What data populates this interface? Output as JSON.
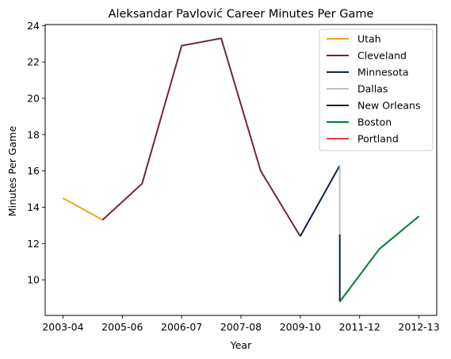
{
  "chart_data": {
    "type": "line",
    "title": "Aleksandar Pavlović Career Minutes Per Game",
    "xlabel": "Year",
    "ylabel": "Minutes Per Game",
    "xtick_labels": [
      "2003-04",
      "2005-06",
      "2006-07",
      "2007-08",
      "2009-10",
      "2011-12",
      "2012-13"
    ],
    "xtick_positions": [
      0,
      1.5,
      3,
      4.5,
      6,
      7.5,
      9
    ],
    "xlim": [
      -0.45,
      9.45
    ],
    "yticks": [
      10,
      12,
      14,
      16,
      18,
      20,
      22,
      24
    ],
    "ylim": [
      8.04,
      24.06
    ],
    "grid": false,
    "legend_position": "top-right",
    "series": [
      {
        "name": "Utah",
        "color": "#f5a31a",
        "x": [
          0,
          1
        ],
        "y": [
          14.5,
          13.3
        ]
      },
      {
        "name": "Cleveland",
        "color": "#6f263d",
        "x": [
          1,
          2,
          3,
          4,
          5,
          6
        ],
        "y": [
          13.3,
          15.3,
          22.9,
          23.3,
          16.0,
          12.4
        ]
      },
      {
        "name": "Minnesota",
        "color": "#0c2340",
        "x": [
          6,
          7
        ],
        "y": [
          12.4,
          16.3
        ]
      },
      {
        "name": "Dallas",
        "color": "#b8c4ca",
        "x": [
          7,
          7
        ],
        "y": [
          16.3,
          12.5
        ]
      },
      {
        "name": "New Orleans",
        "color": "#0c2340",
        "x": [
          7,
          7
        ],
        "y": [
          12.5,
          8.8
        ]
      },
      {
        "name": "Boston",
        "color": "#007a33",
        "x": [
          7,
          8,
          9
        ],
        "y": [
          8.8,
          11.7,
          13.5
        ]
      },
      {
        "name": "Portland",
        "color": "#e03a3e",
        "x": [],
        "y": []
      }
    ]
  }
}
